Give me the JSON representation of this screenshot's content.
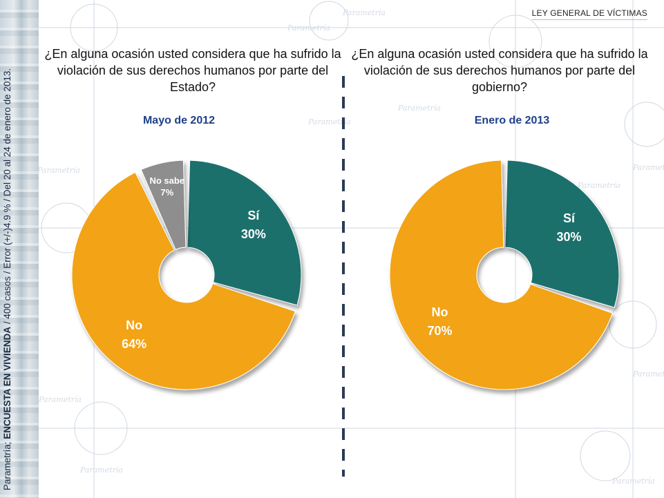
{
  "header": {
    "title": "LEY GENERAL DE VÍCTIMAS"
  },
  "side_note": {
    "prefix": "Parametría; ",
    "bold": "ENCUESTA EN VIVIENDA",
    "suffix": " / 400 casos / Error (+/-)4.9 % / Del 20 al 24 de enero de 2013."
  },
  "panels": [
    {
      "question": "¿En alguna ocasión usted considera que ha sufrido la violación de sus derechos humanos por parte del Estado?",
      "period": "Mayo de 2012"
    },
    {
      "question": "¿En alguna ocasión usted considera que ha sufrido la violación de sus derechos humanos por parte del gobierno?",
      "period": "Enero de 2013"
    }
  ],
  "chart_data": [
    {
      "type": "pie",
      "title": "Mayo de 2012",
      "categories": [
        "Sí",
        "No",
        "No sabe"
      ],
      "values": [
        30,
        64,
        7
      ],
      "value_labels": [
        "30%",
        "64%",
        "7%"
      ],
      "colors": [
        "#1f6f6c",
        "#f2a315",
        "#8e8e8e"
      ],
      "legend": "none"
    },
    {
      "type": "pie",
      "title": "Enero de 2013",
      "categories": [
        "Sí",
        "No"
      ],
      "values": [
        30,
        70
      ],
      "value_labels": [
        "30%",
        "70%"
      ],
      "colors": [
        "#1f6f6c",
        "#f2a315"
      ],
      "legend": "none"
    }
  ]
}
